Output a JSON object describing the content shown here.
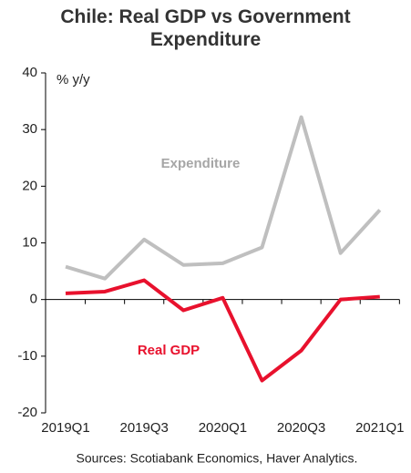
{
  "chart_data": {
    "type": "line",
    "title": "Chile: Real GDP vs Government Expenditure",
    "y_axis_label": "% y/y",
    "source": "Sources: Scotiabank Economics, Haver Analytics.",
    "categories": [
      "2019Q1",
      null,
      "2019Q3",
      null,
      "2020Q1",
      null,
      "2020Q3",
      null,
      "2021Q1"
    ],
    "series": [
      {
        "name": "Expenditure",
        "color": "#bfbfbf",
        "values": [
          5.8,
          3.7,
          10.6,
          6.1,
          6.4,
          9.2,
          32.2,
          8.2,
          15.8
        ]
      },
      {
        "name": "Real GDP",
        "color": "#e8112d",
        "values": [
          1.1,
          1.4,
          3.4,
          -1.9,
          0.3,
          -14.3,
          -9.0,
          0.0,
          0.5
        ]
      }
    ],
    "ylim": [
      -20,
      40
    ],
    "yticks": [
      -20,
      -10,
      0,
      10,
      20,
      30,
      40
    ],
    "grid": false
  }
}
